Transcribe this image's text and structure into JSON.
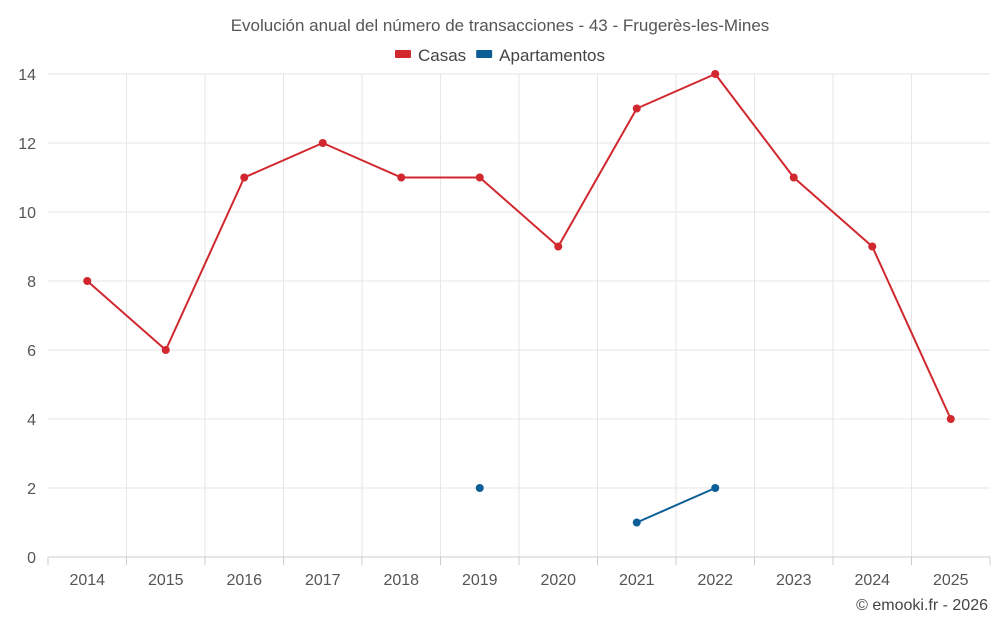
{
  "chart_data": {
    "type": "line",
    "title": "Evolución anual del número de transacciones - 43 - Frugerès-les-Mines",
    "categories": [
      "2014",
      "2015",
      "2016",
      "2017",
      "2018",
      "2019",
      "2020",
      "2021",
      "2022",
      "2023",
      "2024",
      "2025"
    ],
    "series": [
      {
        "name": "Casas",
        "color": "#d0282e",
        "values": [
          8,
          6,
          11,
          12,
          11,
          11,
          9,
          13,
          14,
          11,
          9,
          4
        ]
      },
      {
        "name": "Apartamentos",
        "color": "#0c5f96",
        "values": [
          null,
          null,
          null,
          null,
          null,
          2,
          null,
          1,
          2,
          null,
          null,
          null
        ]
      }
    ],
    "ylim": [
      0,
      14
    ],
    "yticks": [
      0,
      2,
      4,
      6,
      8,
      10,
      12,
      14
    ],
    "grid": true,
    "legend": "top-center",
    "xlabel": "",
    "ylabel": ""
  },
  "credit": "© emooki.fr - 2026"
}
